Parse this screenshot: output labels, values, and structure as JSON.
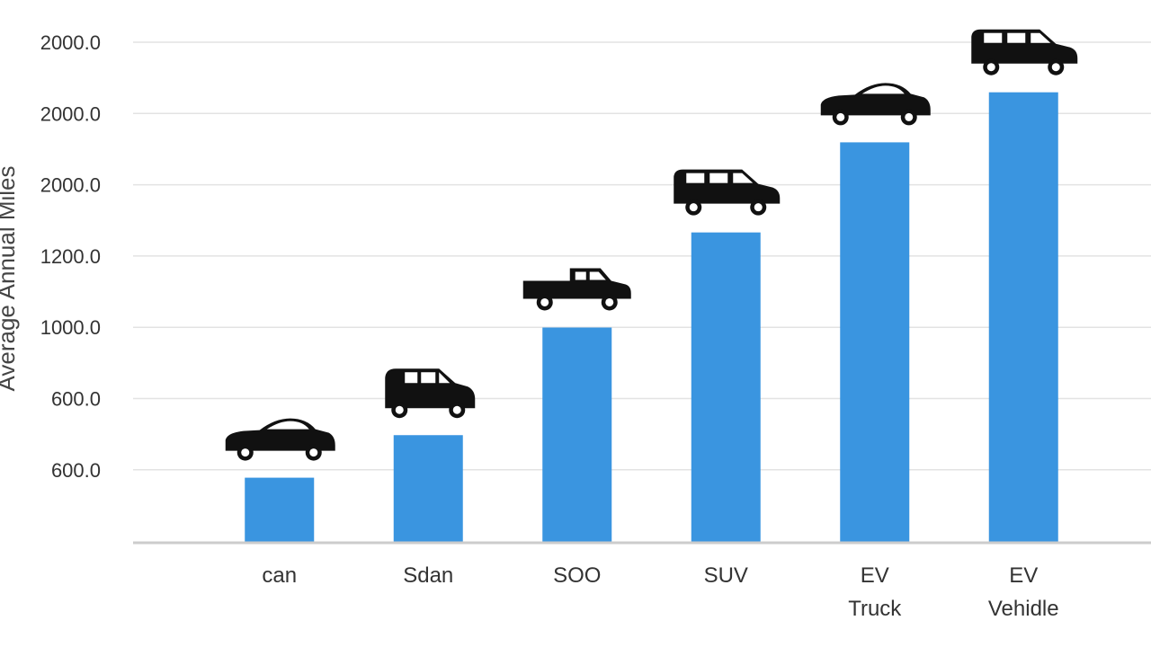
{
  "chart_data": {
    "type": "bar",
    "ylabel": "Average Annual Miles",
    "y_tick_labels": [
      "2000.0",
      "2000.0",
      "2000.0",
      "1200.0",
      "1000.0",
      "600.0",
      "600.0"
    ],
    "categories": [
      {
        "label": [
          "can"
        ],
        "icon": "sedan-car-icon"
      },
      {
        "label": [
          "Sdan"
        ],
        "icon": "suv-car-icon"
      },
      {
        "label": [
          "SOO"
        ],
        "icon": "pickup-truck-icon"
      },
      {
        "label": [
          "SUV"
        ],
        "icon": "minivan-icon"
      },
      {
        "label": [
          "EV",
          "Truck"
        ],
        "icon": "sedan-car-icon"
      },
      {
        "label": [
          "EV",
          "Vehidle"
        ],
        "icon": "minivan-icon"
      }
    ],
    "values": [
      0.13,
      0.215,
      0.43,
      0.62,
      0.8,
      0.9
    ],
    "value_note_unused": "",
    "ylim": [
      0,
      1
    ],
    "grid": true,
    "bar_color": "#3A95E0",
    "icon_color": "#111111"
  }
}
